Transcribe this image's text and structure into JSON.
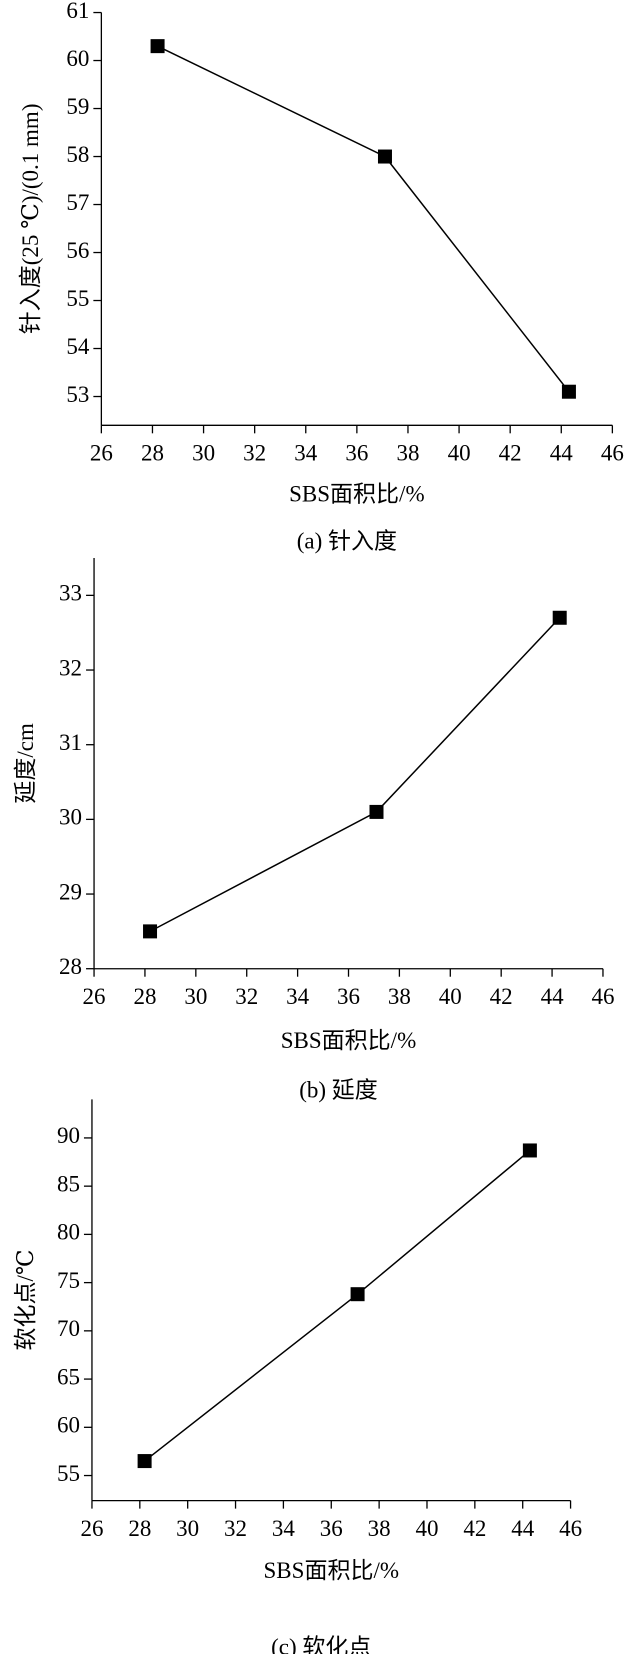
{
  "chart_data": [
    {
      "type": "line",
      "caption": "(a) 针入度",
      "xlabel": "SBS面积比/%",
      "ylabel": "针入度(25 ℃)/(0.1 mm)",
      "x": [
        28.2,
        37.1,
        44.3
      ],
      "series": [
        {
          "color": "#000000",
          "values": [
            60.3,
            58.0,
            53.1
          ]
        }
      ],
      "xlim": [
        26,
        46
      ],
      "xticks": [
        26,
        28,
        30,
        32,
        34,
        36,
        38,
        40,
        42,
        44,
        46
      ],
      "ylim": [
        52.4,
        61
      ],
      "yticks": [
        53,
        54,
        55,
        56,
        57,
        58,
        59,
        60,
        61
      ]
    },
    {
      "type": "line",
      "caption": "(b) 延度",
      "xlabel": "SBS面积比/%",
      "ylabel": "延度/cm",
      "x": [
        28.2,
        37.1,
        44.3
      ],
      "series": [
        {
          "color": "#000000",
          "values": [
            28.5,
            30.1,
            32.7
          ]
        }
      ],
      "xlim": [
        26,
        46
      ],
      "xticks": [
        26,
        28,
        30,
        32,
        34,
        36,
        38,
        40,
        42,
        44,
        46
      ],
      "ylim": [
        28,
        33.5
      ],
      "yticks": [
        28,
        29,
        30,
        31,
        32,
        33
      ]
    },
    {
      "type": "line",
      "caption": "(c) 软化点",
      "xlabel": "SBS面积比/%",
      "ylabel": "软化点/℃",
      "x": [
        28.2,
        37.1,
        44.3
      ],
      "series": [
        {
          "color": "#000000",
          "values": [
            56.5,
            73.8,
            88.7
          ]
        }
      ],
      "xlim": [
        26,
        46
      ],
      "xticks": [
        26,
        28,
        30,
        32,
        34,
        36,
        38,
        40,
        42,
        44,
        46
      ],
      "ylim": [
        52.4,
        94
      ],
      "yticks": [
        55,
        60,
        65,
        70,
        75,
        80,
        85,
        90
      ]
    }
  ]
}
